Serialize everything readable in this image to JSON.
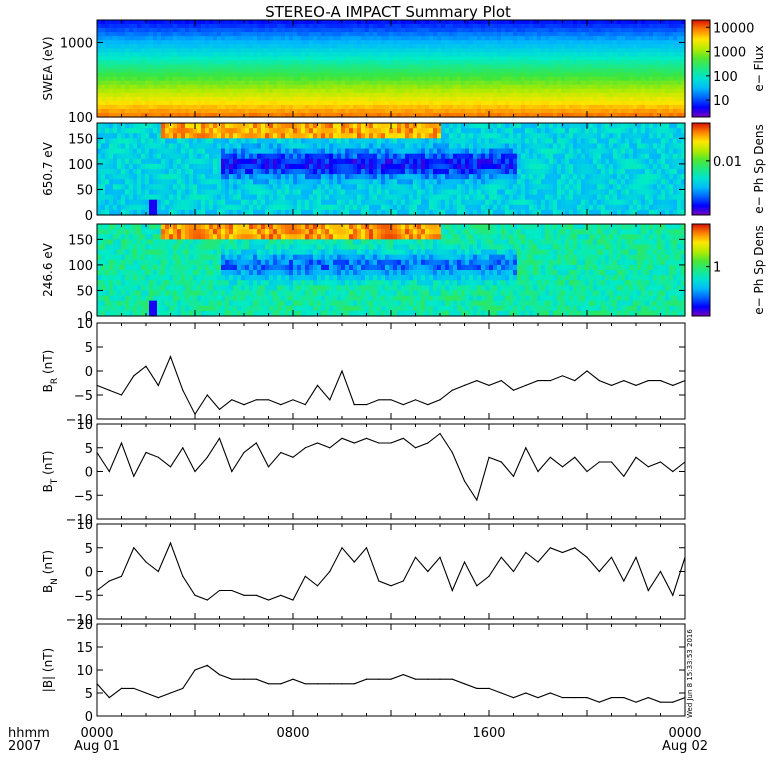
{
  "title": "STEREO-A IMPACT Summary Plot",
  "footer": {
    "left_label_1": "hhmm",
    "left_label_2": "2007",
    "timestamp": "Wed Jun  8 15:33:53 2016"
  },
  "x_axis": {
    "ticks": [
      {
        "hour": 0,
        "line1": "0000",
        "line2": "Aug 01"
      },
      {
        "hour": 8,
        "line1": "0800",
        "line2": ""
      },
      {
        "hour": 16,
        "line1": "1600",
        "line2": ""
      },
      {
        "hour": 24,
        "line1": "0000",
        "line2": "Aug 02"
      }
    ],
    "range_hours": [
      0,
      24
    ]
  },
  "chart_data": [
    {
      "type": "heatmap",
      "id": "swea",
      "ylabel": "SWEA (eV)",
      "y_scale": "log",
      "ylim": [
        100,
        2000
      ],
      "yticks": [
        {
          "v": 100,
          "label": "100"
        },
        {
          "v": 1000,
          "label": "1000"
        }
      ],
      "colorbar": {
        "label": "e− Flux",
        "scale": "log",
        "range": [
          2,
          20000
        ],
        "ticks": [
          {
            "v": 10,
            "label": "10"
          },
          {
            "v": 100,
            "label": "100"
          },
          {
            "v": 1000,
            "label": "1000"
          },
          {
            "v": 10000,
            "label": "10000"
          }
        ]
      }
    },
    {
      "type": "heatmap",
      "id": "pad650",
      "ylabel": "650.7 eV",
      "ylim": [
        0,
        180
      ],
      "yticks": [
        {
          "v": 0,
          "label": "0"
        },
        {
          "v": 50,
          "label": "50"
        },
        {
          "v": 100,
          "label": "100"
        },
        {
          "v": 150,
          "label": "150"
        }
      ],
      "colorbar": {
        "label": "e− Ph Sp Dens",
        "scale": "log",
        "range": [
          0.001,
          0.05
        ],
        "ticks": [
          {
            "v": 0.01,
            "label": "0.01"
          }
        ]
      }
    },
    {
      "type": "heatmap",
      "id": "pad246",
      "ylabel": "246.6 eV",
      "ylim": [
        0,
        180
      ],
      "yticks": [
        {
          "v": 0,
          "label": "0"
        },
        {
          "v": 50,
          "label": "50"
        },
        {
          "v": 100,
          "label": "100"
        },
        {
          "v": 150,
          "label": "150"
        }
      ],
      "colorbar": {
        "label": "e− Ph Sp Dens",
        "scale": "log",
        "range": [
          0.2,
          4
        ],
        "ticks": [
          {
            "v": 1,
            "label": "1"
          }
        ]
      }
    },
    {
      "type": "line",
      "id": "br",
      "ylabel": "B",
      "ylabel_sub": "R",
      "ylabel_unit": "(nT)",
      "ylim": [
        -10,
        10
      ],
      "yticks": [
        {
          "v": -10,
          "label": "−10"
        },
        {
          "v": -5,
          "label": "−5"
        },
        {
          "v": 0,
          "label": "0"
        },
        {
          "v": 5,
          "label": "5"
        },
        {
          "v": 10,
          "label": "10"
        }
      ],
      "x": [
        0,
        0.5,
        1,
        1.5,
        2,
        2.5,
        3,
        3.5,
        4,
        4.5,
        5,
        5.5,
        6,
        6.5,
        7,
        7.5,
        8,
        8.5,
        9,
        9.5,
        10,
        10.5,
        11,
        11.5,
        12,
        12.5,
        13,
        13.5,
        14,
        14.5,
        15,
        15.5,
        16,
        16.5,
        17,
        17.5,
        18,
        18.5,
        19,
        19.5,
        20,
        20.5,
        21,
        21.5,
        22,
        22.5,
        23,
        23.5,
        24
      ],
      "values": [
        -3,
        -4,
        -5,
        -1,
        1,
        -3,
        3,
        -4,
        -9,
        -5,
        -8,
        -6,
        -7,
        -6,
        -6,
        -7,
        -6,
        -7,
        -3,
        -6,
        0,
        -7,
        -7,
        -6,
        -6,
        -7,
        -6,
        -7,
        -6,
        -4,
        -3,
        -2,
        -3,
        -2,
        -4,
        -3,
        -2,
        -2,
        -1,
        -2,
        0,
        -2,
        -3,
        -2,
        -3,
        -2,
        -2,
        -3,
        -2
      ]
    },
    {
      "type": "line",
      "id": "bt",
      "ylabel": "B",
      "ylabel_sub": "T",
      "ylabel_unit": "(nT)",
      "ylim": [
        -10,
        10
      ],
      "yticks": [
        {
          "v": -10,
          "label": "−10"
        },
        {
          "v": -5,
          "label": "−5"
        },
        {
          "v": 0,
          "label": "0"
        },
        {
          "v": 5,
          "label": "5"
        },
        {
          "v": 10,
          "label": "10"
        }
      ],
      "x": [
        0,
        0.5,
        1,
        1.5,
        2,
        2.5,
        3,
        3.5,
        4,
        4.5,
        5,
        5.5,
        6,
        6.5,
        7,
        7.5,
        8,
        8.5,
        9,
        9.5,
        10,
        10.5,
        11,
        11.5,
        12,
        12.5,
        13,
        13.5,
        14,
        14.5,
        15,
        15.5,
        16,
        16.5,
        17,
        17.5,
        18,
        18.5,
        19,
        19.5,
        20,
        20.5,
        21,
        21.5,
        22,
        22.5,
        23,
        23.5,
        24
      ],
      "values": [
        4,
        0,
        6,
        -1,
        4,
        3,
        1,
        5,
        0,
        3,
        7,
        0,
        4,
        6,
        1,
        4,
        3,
        5,
        6,
        5,
        7,
        6,
        7,
        6,
        6,
        7,
        5,
        6,
        8,
        4,
        -2,
        -6,
        3,
        2,
        -1,
        5,
        0,
        3,
        1,
        3,
        0,
        2,
        2,
        -1,
        3,
        1,
        2,
        0,
        2
      ]
    },
    {
      "type": "line",
      "id": "bn",
      "ylabel": "B",
      "ylabel_sub": "N",
      "ylabel_unit": "(nT)",
      "ylim": [
        -10,
        10
      ],
      "yticks": [
        {
          "v": -10,
          "label": "−10"
        },
        {
          "v": -5,
          "label": "−5"
        },
        {
          "v": 0,
          "label": "0"
        },
        {
          "v": 5,
          "label": "5"
        },
        {
          "v": 10,
          "label": "10"
        }
      ],
      "x": [
        0,
        0.5,
        1,
        1.5,
        2,
        2.5,
        3,
        3.5,
        4,
        4.5,
        5,
        5.5,
        6,
        6.5,
        7,
        7.5,
        8,
        8.5,
        9,
        9.5,
        10,
        10.5,
        11,
        11.5,
        12,
        12.5,
        13,
        13.5,
        14,
        14.5,
        15,
        15.5,
        16,
        16.5,
        17,
        17.5,
        18,
        18.5,
        19,
        19.5,
        20,
        20.5,
        21,
        21.5,
        22,
        22.5,
        23,
        23.5,
        24
      ],
      "values": [
        -4,
        -2,
        -1,
        5,
        2,
        0,
        6,
        -1,
        -5,
        -6,
        -4,
        -4,
        -5,
        -5,
        -6,
        -5,
        -6,
        -1,
        -3,
        0,
        5,
        2,
        5,
        -2,
        -3,
        -2,
        3,
        0,
        3,
        -4,
        2,
        -3,
        -1,
        3,
        0,
        4,
        2,
        5,
        4,
        5,
        3,
        0,
        3,
        -2,
        3,
        -4,
        0,
        -5,
        3
      ]
    },
    {
      "type": "line",
      "id": "bmag",
      "ylabel": "|B| (nT)",
      "ylim": [
        0,
        20
      ],
      "yticks": [
        {
          "v": 0,
          "label": "0"
        },
        {
          "v": 5,
          "label": "5"
        },
        {
          "v": 10,
          "label": "10"
        },
        {
          "v": 15,
          "label": "15"
        },
        {
          "v": 20,
          "label": "20"
        }
      ],
      "x": [
        0,
        0.5,
        1,
        1.5,
        2,
        2.5,
        3,
        3.5,
        4,
        4.5,
        5,
        5.5,
        6,
        6.5,
        7,
        7.5,
        8,
        8.5,
        9,
        9.5,
        10,
        10.5,
        11,
        11.5,
        12,
        12.5,
        13,
        13.5,
        14,
        14.5,
        15,
        15.5,
        16,
        16.5,
        17,
        17.5,
        18,
        18.5,
        19,
        19.5,
        20,
        20.5,
        21,
        21.5,
        22,
        22.5,
        23,
        23.5,
        24
      ],
      "values": [
        7,
        4,
        6,
        6,
        5,
        4,
        5,
        6,
        10,
        11,
        9,
        8,
        8,
        8,
        7,
        7,
        8,
        7,
        7,
        7,
        7,
        7,
        8,
        8,
        8,
        9,
        8,
        8,
        8,
        8,
        7,
        6,
        6,
        5,
        4,
        5,
        4,
        5,
        4,
        4,
        4,
        3,
        4,
        4,
        3,
        4,
        3,
        3,
        4
      ]
    }
  ]
}
